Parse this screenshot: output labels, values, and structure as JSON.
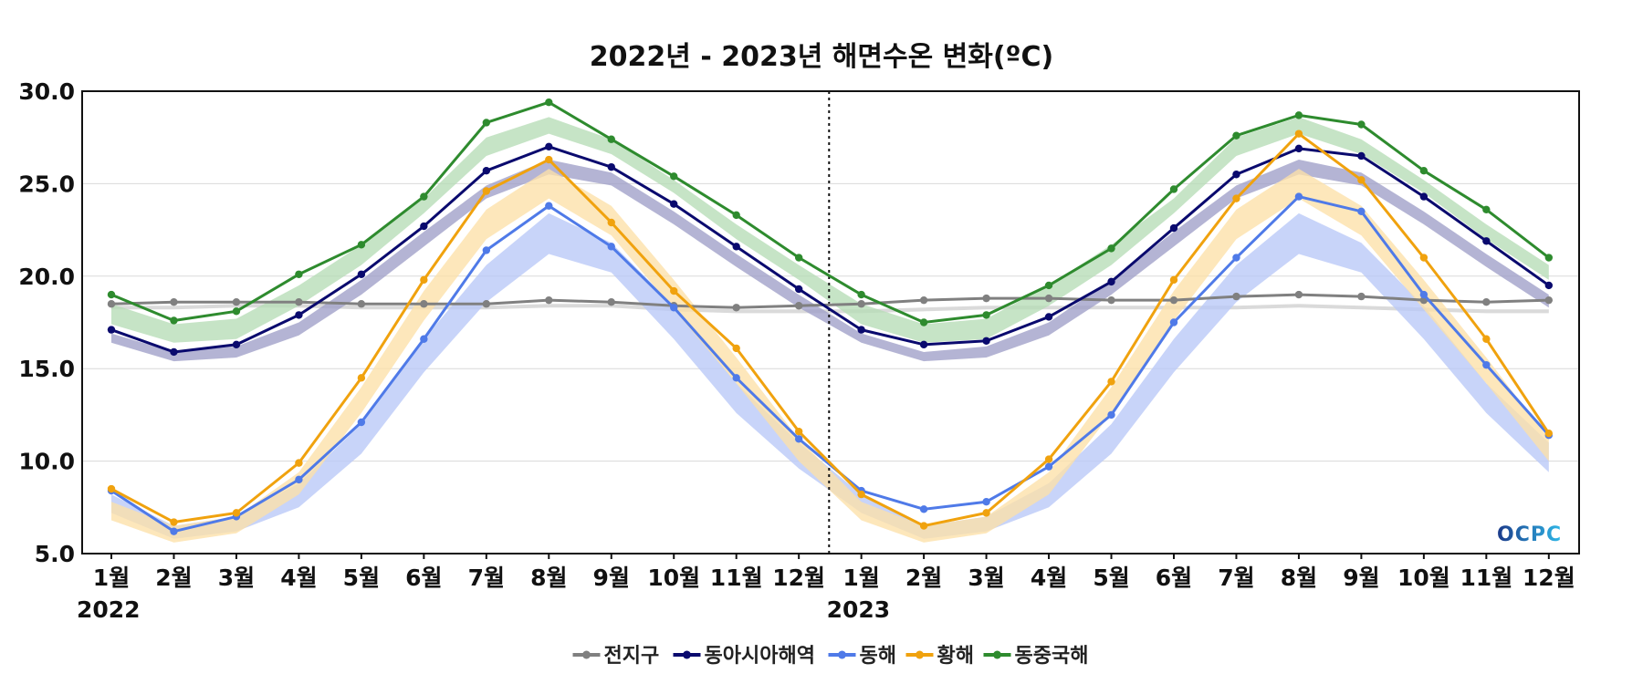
{
  "chart_data": {
    "type": "line",
    "title": "2022년 - 2023년 해면수온 변화(ºC)",
    "ylabel": "",
    "xlabel": "",
    "ylim": [
      5.0,
      30.0
    ],
    "yticks": [
      "5.0",
      "10.0",
      "15.0",
      "20.0",
      "25.0",
      "30.0"
    ],
    "ytick_values": [
      5,
      10,
      15,
      20,
      25,
      30
    ],
    "categories": [
      "1월",
      "2월",
      "3월",
      "4월",
      "5월",
      "6월",
      "7월",
      "8월",
      "9월",
      "10월",
      "11월",
      "12월",
      "1월",
      "2월",
      "3월",
      "4월",
      "5월",
      "6월",
      "7월",
      "8월",
      "9월",
      "10월",
      "11월",
      "12월"
    ],
    "year_labels": [
      {
        "label": "2022",
        "index": 0
      },
      {
        "label": "2023",
        "index": 12
      }
    ],
    "divider_after_index": 11,
    "grid": "horizontal",
    "legend_position": "bottom-center",
    "series": [
      {
        "name": "전지구",
        "color": "#808080",
        "band_color": "#cfcfcf",
        "values": [
          18.5,
          18.6,
          18.6,
          18.6,
          18.5,
          18.5,
          18.5,
          18.7,
          18.6,
          18.4,
          18.3,
          18.4,
          18.5,
          18.7,
          18.8,
          18.8,
          18.7,
          18.7,
          18.9,
          19.0,
          18.9,
          18.7,
          18.6,
          18.7
        ],
        "band_low": [
          18.2,
          18.2,
          18.3,
          18.3,
          18.2,
          18.2,
          18.2,
          18.3,
          18.3,
          18.1,
          18.0,
          18.0,
          18.0,
          18.1,
          18.2,
          18.2,
          18.2,
          18.2,
          18.2,
          18.3,
          18.2,
          18.1,
          18.0,
          18.0
        ],
        "band_high": [
          18.4,
          18.4,
          18.5,
          18.5,
          18.4,
          18.4,
          18.4,
          18.5,
          18.5,
          18.3,
          18.2,
          18.2,
          18.2,
          18.3,
          18.4,
          18.4,
          18.4,
          18.4,
          18.4,
          18.5,
          18.4,
          18.3,
          18.2,
          18.2
        ]
      },
      {
        "name": "동아시아해역",
        "color": "#0a0a6e",
        "band_color": "#9f9fc8",
        "values": [
          17.1,
          15.9,
          16.3,
          17.9,
          20.1,
          22.7,
          25.7,
          27.0,
          25.9,
          23.9,
          21.6,
          19.3,
          17.1,
          16.3,
          16.5,
          17.8,
          19.7,
          22.6,
          25.5,
          26.9,
          26.5,
          24.3,
          21.9,
          19.5
        ],
        "band_low": [
          16.4,
          15.4,
          15.6,
          16.8,
          19.0,
          21.6,
          24.2,
          25.5,
          24.9,
          22.8,
          20.5,
          18.3,
          16.4,
          15.4,
          15.6,
          16.8,
          19.0,
          21.6,
          24.2,
          25.5,
          24.9,
          22.8,
          20.5,
          18.3
        ],
        "band_high": [
          16.9,
          15.9,
          16.2,
          17.5,
          19.8,
          22.4,
          24.9,
          26.3,
          25.6,
          23.5,
          21.2,
          19.0,
          16.9,
          15.9,
          16.2,
          17.5,
          19.8,
          22.4,
          24.9,
          26.3,
          25.6,
          23.5,
          21.2,
          19.0
        ]
      },
      {
        "name": "동해",
        "color": "#4f7ae8",
        "band_color": "#b8c8f7",
        "values": [
          8.4,
          6.2,
          7.0,
          9.0,
          12.1,
          16.6,
          21.4,
          23.8,
          21.6,
          18.3,
          14.5,
          11.2,
          8.4,
          7.4,
          7.8,
          9.7,
          12.5,
          17.5,
          21.0,
          24.3,
          23.5,
          19.0,
          15.2,
          11.4
        ],
        "band_low": [
          7.2,
          5.8,
          6.2,
          7.5,
          10.4,
          14.8,
          18.6,
          21.2,
          20.2,
          16.6,
          12.6,
          9.6,
          7.2,
          5.8,
          6.2,
          7.5,
          10.4,
          14.8,
          18.6,
          21.2,
          20.2,
          16.6,
          12.6,
          9.4
        ],
        "band_high": [
          8.2,
          6.5,
          7.0,
          8.8,
          12.0,
          16.6,
          20.6,
          23.4,
          21.8,
          18.4,
          14.2,
          11.0,
          8.2,
          6.5,
          7.0,
          8.8,
          12.0,
          16.6,
          20.6,
          23.4,
          21.8,
          18.4,
          14.2,
          11.0
        ]
      },
      {
        "name": "황해",
        "color": "#f0a20e",
        "band_color": "#fde0a8",
        "values": [
          8.5,
          6.7,
          7.2,
          9.9,
          14.5,
          19.8,
          24.6,
          26.3,
          22.9,
          19.2,
          16.1,
          11.6,
          8.2,
          6.5,
          7.2,
          10.1,
          14.3,
          19.8,
          24.2,
          27.7,
          25.2,
          21.0,
          16.6,
          11.5
        ],
        "band_low": [
          6.8,
          5.6,
          6.1,
          8.2,
          12.6,
          17.6,
          22.0,
          24.2,
          22.2,
          18.2,
          14.2,
          10.0,
          6.8,
          5.6,
          6.1,
          8.2,
          12.6,
          17.6,
          22.0,
          24.2,
          22.2,
          18.2,
          14.2,
          10.0
        ],
        "band_high": [
          7.8,
          6.5,
          7.0,
          9.4,
          14.0,
          19.2,
          23.6,
          25.8,
          23.8,
          19.8,
          15.6,
          11.2,
          7.8,
          6.5,
          7.0,
          9.4,
          14.0,
          19.2,
          23.6,
          25.8,
          23.8,
          19.8,
          15.6,
          11.2
        ]
      },
      {
        "name": "동중국해",
        "color": "#2e8b2e",
        "band_color": "#b6dcb6",
        "values": [
          19.0,
          17.6,
          18.1,
          20.1,
          21.7,
          24.3,
          28.3,
          29.4,
          27.4,
          25.4,
          23.3,
          21.0,
          19.0,
          17.5,
          17.9,
          19.5,
          21.5,
          24.7,
          27.6,
          28.7,
          28.2,
          25.7,
          23.6,
          21.0
        ],
        "band_low": [
          17.4,
          16.4,
          16.6,
          18.4,
          20.6,
          23.4,
          26.5,
          27.7,
          26.6,
          24.5,
          22.0,
          19.8,
          17.4,
          16.4,
          16.6,
          18.4,
          20.6,
          23.4,
          26.5,
          27.7,
          26.6,
          24.5,
          22.0,
          19.8
        ],
        "band_high": [
          18.5,
          17.4,
          17.7,
          19.5,
          21.7,
          24.2,
          27.5,
          28.6,
          27.4,
          25.2,
          22.8,
          20.6,
          18.5,
          17.4,
          17.7,
          19.5,
          21.7,
          24.2,
          27.5,
          28.6,
          27.4,
          25.2,
          22.8,
          20.6
        ]
      }
    ]
  },
  "logo": {
    "text": "OCPC",
    "color_start": "#1b3a8a",
    "color_end": "#2fb8e8"
  }
}
